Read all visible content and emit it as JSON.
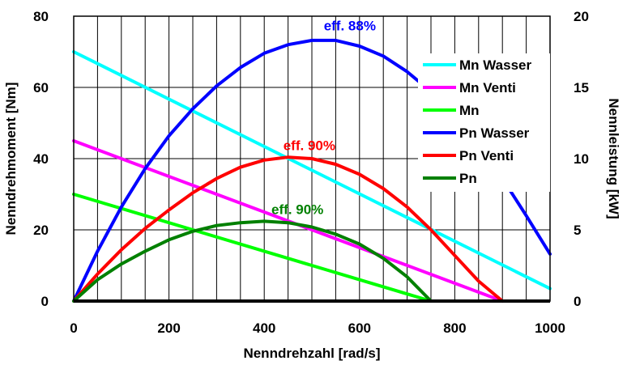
{
  "chart_data": {
    "type": "line",
    "title": "",
    "xlabel": "Nenndrehzahl [rad/s]",
    "ylabel": "Nenndrehmoment [Nm]",
    "y2label": "Nennleistung [kW]",
    "xlim": [
      0,
      1000
    ],
    "ylim": [
      0,
      80
    ],
    "y2lim": [
      0,
      20
    ],
    "x_ticks": [
      "0",
      "200",
      "400",
      "600",
      "800",
      "1000"
    ],
    "y_ticks": [
      "0",
      "20",
      "40",
      "60",
      "80"
    ],
    "y2_ticks": [
      "0",
      "5",
      "10",
      "15",
      "20"
    ],
    "grid": true,
    "legend_position": "top-right",
    "series": [
      {
        "name": "Mn Wasser",
        "axis": "left",
        "color": "#00ffff",
        "x": [
          0,
          1000
        ],
        "y": [
          70,
          3.5
        ]
      },
      {
        "name": "Mn Venti",
        "axis": "left",
        "color": "#ff00ff",
        "x": [
          0,
          900
        ],
        "y": [
          45,
          0
        ]
      },
      {
        "name": "Mn",
        "axis": "left",
        "color": "#00ff00",
        "x": [
          0,
          750
        ],
        "y": [
          30,
          0
        ]
      },
      {
        "name": "Pn Wasser",
        "axis": "right",
        "color": "#0000ff",
        "x": [
          0,
          50,
          100,
          150,
          200,
          250,
          300,
          350,
          400,
          450,
          500,
          550,
          600,
          650,
          700,
          750,
          800,
          850,
          900,
          950,
          1000
        ],
        "y": [
          0,
          3.5,
          6.6,
          9.3,
          11.6,
          13.5,
          15.1,
          16.4,
          17.4,
          18.0,
          18.3,
          18.3,
          17.9,
          17.2,
          16.1,
          14.7,
          13.0,
          11.0,
          8.6,
          6.0,
          3.3
        ]
      },
      {
        "name": "Pn Venti",
        "axis": "right",
        "color": "#ff0000",
        "x": [
          0,
          50,
          100,
          150,
          200,
          250,
          300,
          350,
          400,
          450,
          500,
          550,
          600,
          650,
          700,
          750,
          800,
          850,
          900
        ],
        "y": [
          0,
          1.9,
          3.6,
          5.1,
          6.4,
          7.6,
          8.6,
          9.4,
          9.9,
          10.1,
          10.0,
          9.6,
          8.9,
          7.9,
          6.6,
          5.0,
          3.2,
          1.4,
          0
        ]
      },
      {
        "name": "Pn",
        "axis": "right",
        "color": "#008000",
        "x": [
          0,
          50,
          100,
          150,
          200,
          250,
          300,
          350,
          400,
          450,
          500,
          550,
          600,
          650,
          700,
          750
        ],
        "y": [
          0,
          1.5,
          2.6,
          3.5,
          4.3,
          4.9,
          5.3,
          5.5,
          5.6,
          5.5,
          5.2,
          4.7,
          4.0,
          3.0,
          1.7,
          0
        ]
      }
    ],
    "annotations": [
      {
        "text": "eff. 88%",
        "color": "#0000ff",
        "x": 525,
        "y2": 19.0
      },
      {
        "text": "eff. 90%",
        "color": "#ff0000",
        "x": 440,
        "y2": 10.6
      },
      {
        "text": "eff. 90%",
        "color": "#008000",
        "x": 415,
        "y2": 6.1
      }
    ]
  }
}
